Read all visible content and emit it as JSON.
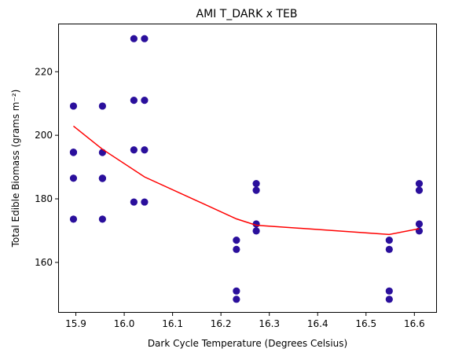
{
  "chart_data": {
    "type": "scatter",
    "title": "AMI T_DARK x TEB",
    "xlabel": "Dark Cycle Temperature (Degrees Celsius)",
    "ylabel": "Total Edible Biomass (grams m⁻²)",
    "xlim": [
      15.865,
      16.645
    ],
    "ylim": [
      144.4,
      234.9
    ],
    "xticks": [
      15.9,
      16.0,
      16.1,
      16.2,
      16.3,
      16.4,
      16.5,
      16.6
    ],
    "yticks": [
      160,
      180,
      200,
      220
    ],
    "grid": false,
    "legend": "none",
    "colors": {
      "points": "#2a0f9c",
      "line": "#ff0000",
      "axes": "#000000"
    },
    "scatter": {
      "x": [
        15.895,
        15.895,
        15.895,
        15.895,
        15.895,
        15.955,
        15.955,
        15.955,
        15.955,
        15.955,
        16.02,
        16.02,
        16.02,
        16.02,
        16.042,
        16.042,
        16.042,
        16.042,
        16.232,
        16.232,
        16.232,
        16.232,
        16.273,
        16.273,
        16.273,
        16.273,
        16.548,
        16.548,
        16.548,
        16.548,
        16.61,
        16.61,
        16.61,
        16.61
      ],
      "y": [
        209.2,
        194.6,
        186.5,
        173.6,
        194.7,
        209.2,
        194.6,
        186.5,
        173.6,
        186.4,
        230.4,
        211.0,
        195.4,
        179.0,
        230.4,
        211.0,
        195.4,
        179.0,
        167.0,
        164.1,
        151.0,
        148.4,
        184.8,
        182.7,
        172.1,
        169.9,
        167.0,
        164.1,
        151.0,
        148.4,
        184.8,
        182.7,
        172.1,
        169.9
      ]
    },
    "series": [
      {
        "type": "line",
        "x": [
          15.895,
          15.955,
          16.042,
          16.232,
          16.273,
          16.548,
          16.61
        ],
        "y": [
          202.9,
          195.6,
          186.9,
          173.7,
          171.7,
          168.8,
          170.6
        ]
      }
    ]
  }
}
